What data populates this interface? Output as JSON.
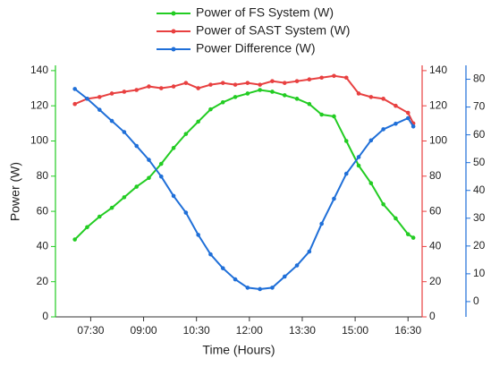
{
  "chart_data": {
    "type": "line",
    "legend": "top",
    "xlabel": "Time (Hours)",
    "ylabel": "Power (W)",
    "x": [
      7.05,
      7.4,
      7.75,
      8.1,
      8.45,
      8.8,
      9.15,
      9.5,
      9.85,
      10.2,
      10.55,
      10.9,
      11.25,
      11.6,
      11.95,
      12.3,
      12.65,
      13.0,
      13.35,
      13.7,
      14.05,
      14.4,
      14.75,
      15.1,
      15.45,
      15.8,
      16.15,
      16.5,
      16.65
    ],
    "xlim": [
      6.5,
      16.9
    ],
    "xticks": [
      {
        "value": 7.5,
        "label": "07:30"
      },
      {
        "value": 9,
        "label": "09:00"
      },
      {
        "value": 10.5,
        "label": "10:30"
      },
      {
        "value": 12,
        "label": "12:00"
      },
      {
        "value": 13.5,
        "label": "13:30"
      },
      {
        "value": 15,
        "label": "15:00"
      },
      {
        "value": 16.5,
        "label": "16:30"
      }
    ],
    "ylim": [
      0,
      143
    ],
    "yticks": [
      0,
      20,
      40,
      60,
      80,
      100,
      120,
      140
    ],
    "ycolor": "#22cc22",
    "y2lim": [
      0,
      143
    ],
    "y2ticks": [
      0,
      20,
      40,
      60,
      80,
      100,
      120,
      140
    ],
    "y2color": "#e84040",
    "y3lim": [
      -5.5,
      85
    ],
    "y3ticks": [
      0,
      10,
      20,
      30,
      40,
      50,
      60,
      70,
      80
    ],
    "y3color": "#1f6fd8",
    "series": [
      {
        "name": "Power of FS System (W)",
        "color": "#22cc22",
        "axis": "y",
        "values": [
          44,
          51,
          57,
          62,
          68,
          74,
          79,
          87,
          96,
          104,
          111,
          118,
          122,
          125,
          127,
          129,
          128,
          126,
          124,
          121,
          115,
          114,
          100,
          86,
          76,
          64,
          56,
          47,
          45
        ]
      },
      {
        "name": "Power of SAST System (W)",
        "color": "#e84040",
        "axis": "y2",
        "values": [
          121,
          124,
          125,
          127,
          128,
          129,
          131,
          130,
          131,
          133,
          130,
          132,
          133,
          132,
          133,
          132,
          134,
          133,
          134,
          135,
          136,
          137,
          136,
          127,
          125,
          124,
          120,
          116,
          110
        ]
      },
      {
        "name": "Power Difference (W)",
        "color": "#1f6fd8",
        "axis": "y3",
        "values": [
          76.5,
          73,
          69,
          65,
          61,
          56,
          51,
          45,
          38,
          32,
          24,
          17,
          12,
          8,
          5,
          4.5,
          5,
          9,
          13,
          18,
          28,
          37,
          46,
          52,
          58,
          62,
          64,
          66,
          63
        ]
      }
    ]
  }
}
